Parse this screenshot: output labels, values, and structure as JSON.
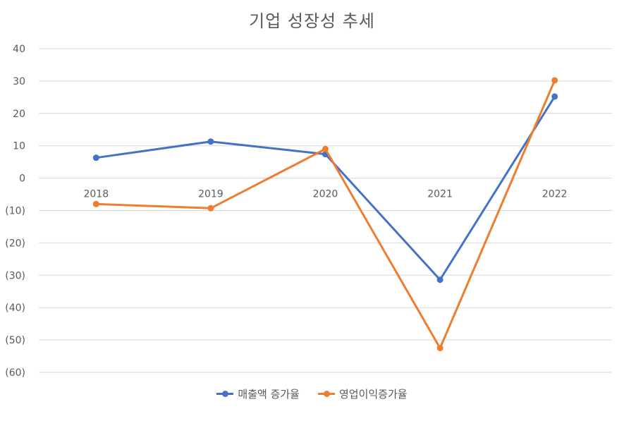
{
  "chart_data": {
    "type": "line",
    "title": "기업 성장성 추세",
    "categories": [
      "2018",
      "2019",
      "2020",
      "2021",
      "2022"
    ],
    "series": [
      {
        "name": "매출액 증가율",
        "color": "#4472C4",
        "values": [
          6.3,
          11.3,
          7.4,
          -31.4,
          25.2
        ]
      },
      {
        "name": "영업이익증가율",
        "color": "#ED7D31",
        "values": [
          -8.0,
          -9.3,
          9.0,
          -52.5,
          30.2
        ]
      }
    ],
    "ylim": [
      -60,
      40
    ],
    "yticks": [
      40,
      30,
      20,
      10,
      0,
      -10,
      -20,
      -30,
      -40,
      -50,
      -60
    ],
    "ytick_labels": [
      "40",
      "30",
      "20",
      "10",
      "0",
      "(10)",
      "(20)",
      "(30)",
      "(40)",
      "(50)",
      "(60)"
    ],
    "grid": true,
    "legend": "bottom"
  }
}
